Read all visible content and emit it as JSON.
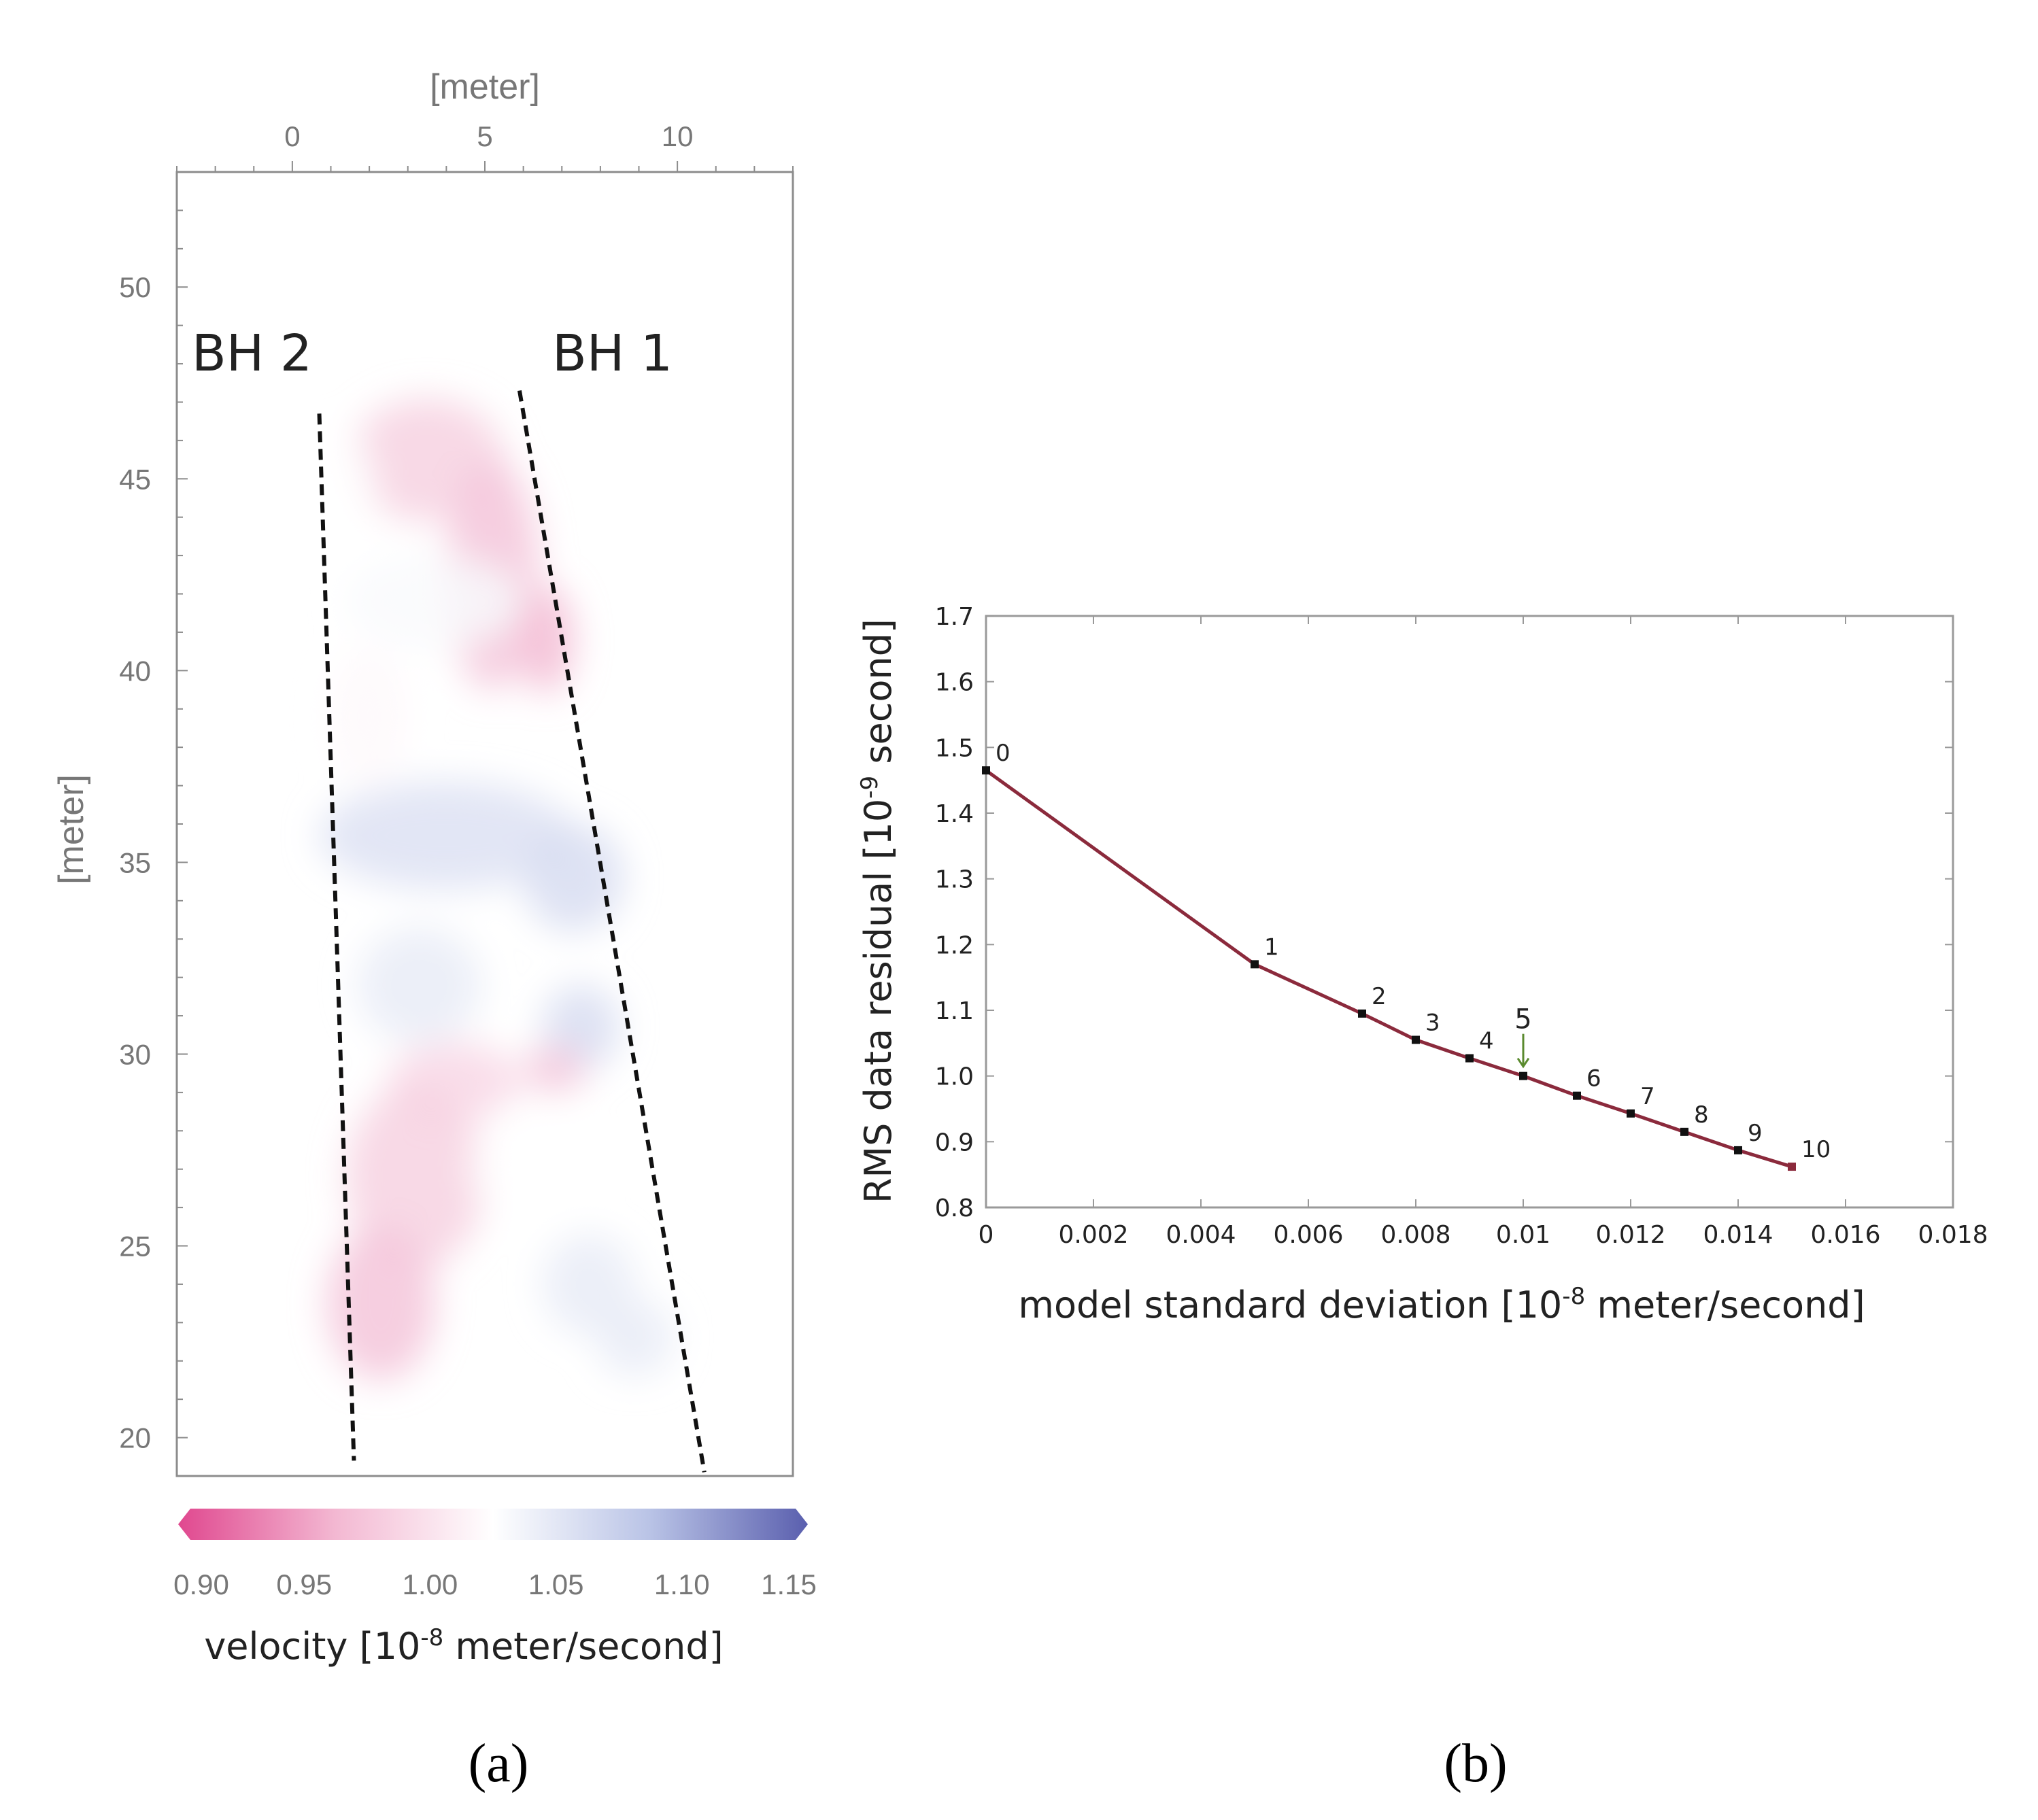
{
  "chart_data": [
    {
      "type": "heatmap",
      "panel_label": "(a)",
      "x_axis": {
        "label": "[meter]",
        "position": "top",
        "range": [
          -3,
          13
        ],
        "ticks": [
          0,
          5,
          10
        ]
      },
      "y_axis": {
        "label": "[meter]",
        "range": [
          19,
          53
        ],
        "ticks": [
          20,
          25,
          30,
          35,
          40,
          45,
          50
        ]
      },
      "annotations": [
        "BH 2",
        "BH 1"
      ],
      "boreholes": [
        {
          "name": "BH 2",
          "top": [
            0.7,
            46.7
          ],
          "bottom": [
            1.6,
            19.4
          ]
        },
        {
          "name": "BH 1",
          "top": [
            5.9,
            47.3
          ],
          "bottom": [
            10.7,
            19.1
          ]
        }
      ],
      "colorbar": {
        "label": "velocity [10-8 meter/second]",
        "label_prefix": "velocity [10",
        "label_exponent": "-8",
        "label_suffix": " meter/second]",
        "range": [
          0.9,
          1.15
        ],
        "ticks": [
          "0.90",
          "0.95",
          "1.00",
          "1.05",
          "1.10",
          "1.15"
        ],
        "colors": [
          "#e0488f",
          "#f3b8d2",
          "#ffffff",
          "#b9c3e6",
          "#5a5fae"
        ]
      },
      "velocity_patches": [
        {
          "cx": 3.5,
          "cy": 45.5,
          "rx": 2.0,
          "ry": 1.6,
          "v": 0.985
        },
        {
          "cx": 5.2,
          "cy": 42.5,
          "rx": 1.2,
          "ry": 3.0,
          "v": 0.975
        },
        {
          "cx": 6.6,
          "cy": 40.8,
          "rx": 0.7,
          "ry": 1.4,
          "v": 0.965
        },
        {
          "cx": 1.3,
          "cy": 44.6,
          "rx": 0.9,
          "ry": 1.6,
          "v": 1.025
        },
        {
          "cx": 3.7,
          "cy": 41.8,
          "rx": 2.3,
          "ry": 1.2,
          "v": 1.03
        },
        {
          "cx": 2.0,
          "cy": 38.8,
          "rx": 1.0,
          "ry": 1.8,
          "v": 1.02
        },
        {
          "cx": 4.0,
          "cy": 35.7,
          "rx": 3.3,
          "ry": 1.4,
          "v": 1.055
        },
        {
          "cx": 7.3,
          "cy": 34.6,
          "rx": 1.3,
          "ry": 1.4,
          "v": 1.06
        },
        {
          "cx": 3.3,
          "cy": 31.8,
          "rx": 1.6,
          "ry": 1.5,
          "v": 1.045
        },
        {
          "cx": 7.5,
          "cy": 30.7,
          "rx": 1.0,
          "ry": 1.1,
          "v": 1.06
        },
        {
          "cx": 4.2,
          "cy": 29.3,
          "rx": 1.7,
          "ry": 1.0,
          "v": 0.99
        },
        {
          "cx": 6.8,
          "cy": 29.6,
          "rx": 0.8,
          "ry": 0.6,
          "v": 0.975
        },
        {
          "cx": 3.2,
          "cy": 26.8,
          "rx": 1.8,
          "ry": 2.4,
          "v": 0.985
        },
        {
          "cx": 2.3,
          "cy": 23.5,
          "rx": 1.4,
          "ry": 2.0,
          "v": 0.975
        },
        {
          "cx": 6.2,
          "cy": 27.0,
          "rx": 1.6,
          "ry": 1.2,
          "v": 1.025
        },
        {
          "cx": 7.7,
          "cy": 24.0,
          "rx": 1.2,
          "ry": 1.3,
          "v": 1.045
        },
        {
          "cx": 8.9,
          "cy": 22.6,
          "rx": 1.0,
          "ry": 1.0,
          "v": 1.045
        }
      ]
    },
    {
      "type": "line",
      "panel_label": "(b)",
      "x_axis": {
        "label": "model standard deviation [10-8 meter/second]",
        "range": [
          0,
          0.018
        ],
        "ticks": [
          0,
          0.002,
          0.004,
          0.006,
          0.008,
          0.01,
          0.012,
          0.014,
          0.016,
          0.018
        ],
        "tick_labels": [
          "0",
          "0.002",
          "0.004",
          "0.006",
          "0.008",
          "0.01",
          "0.012",
          "0.014",
          "0.016",
          "0.018"
        ]
      },
      "y_axis": {
        "label": "RMS data residual [10-9 second]",
        "range": [
          0.8,
          1.7
        ],
        "ticks": [
          0.8,
          0.9,
          1.0,
          1.1,
          1.2,
          1.3,
          1.4,
          1.5,
          1.6,
          1.7
        ],
        "tick_labels": [
          "0.8",
          "0.9",
          "1.0",
          "1.1",
          "1.2",
          "1.3",
          "1.4",
          "1.5",
          "1.6",
          "1.7"
        ]
      },
      "xlabel_prefix": "model standard deviation [10",
      "xlabel_exponent": "-8",
      "xlabel_suffix": " meter/second]",
      "ylabel_prefix": "RMS data residual [10",
      "ylabel_exponent": "-9",
      "ylabel_suffix": " second]",
      "series": [
        {
          "name": "residual",
          "color": "#8b2a3c",
          "x": [
            0,
            0.005,
            0.007,
            0.008,
            0.009,
            0.01,
            0.011,
            0.012,
            0.013,
            0.014,
            0.015
          ],
          "y": [
            1.465,
            1.17,
            1.095,
            1.055,
            1.027,
            1.0,
            0.97,
            0.943,
            0.915,
            0.887,
            0.862
          ],
          "point_labels": [
            "0",
            "1",
            "2",
            "3",
            "4",
            "5",
            "6",
            "7",
            "8",
            "9",
            "10"
          ]
        }
      ],
      "highlight": {
        "index": 5,
        "label": "5",
        "color": "#5a8a2e"
      }
    }
  ]
}
